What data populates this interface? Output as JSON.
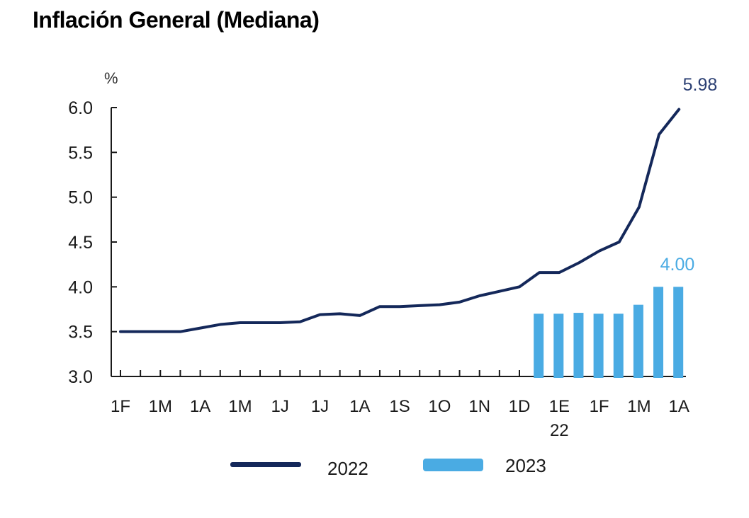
{
  "chart_data": {
    "type": "line+bar",
    "title": "Inflación General (Mediana)",
    "ylabel": "%",
    "ylim": [
      3.0,
      6.0
    ],
    "yticks": [
      "6.0",
      "5.5",
      "5.0",
      "4.5",
      "4.0",
      "3.5",
      "3.0"
    ],
    "x_tick_labels": [
      "1F",
      "1M",
      "1A",
      "1M",
      "1J",
      "1J",
      "1A",
      "1S",
      "1O",
      "1N",
      "1D",
      "1E",
      "1F",
      "1M",
      "1A"
    ],
    "x_tick_sublabel": "22",
    "series": [
      {
        "name": "2022",
        "kind": "line",
        "color": "#14285a",
        "values": [
          3.5,
          3.5,
          3.5,
          3.5,
          3.54,
          3.58,
          3.6,
          3.6,
          3.6,
          3.61,
          3.69,
          3.7,
          3.68,
          3.78,
          3.78,
          3.79,
          3.8,
          3.83,
          3.9,
          3.95,
          4.0,
          4.16,
          4.16,
          4.27,
          4.4,
          4.5,
          4.89,
          5.7,
          5.98
        ],
        "end_label": "5.98"
      },
      {
        "name": "2023",
        "kind": "bar",
        "color": "#4aabe3",
        "values": [
          3.7,
          3.7,
          3.71,
          3.7,
          3.7,
          3.8,
          4.0,
          4.0
        ],
        "end_label": "4.00"
      }
    ],
    "legend": {
      "placement": "bottom",
      "items": [
        "2022",
        "2023"
      ]
    }
  }
}
